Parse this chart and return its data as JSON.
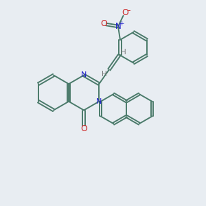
{
  "bg_color": "#e8edf2",
  "bond_color": "#4a7a6a",
  "N_color": "#1a1acc",
  "O_color": "#cc2222",
  "H_color": "#7a7a7a",
  "lw": 1.4,
  "dbo": 0.09,
  "figsize": [
    3.0,
    3.0
  ],
  "dpi": 100,
  "xlim": [
    0,
    10
  ],
  "ylim": [
    0,
    10
  ]
}
